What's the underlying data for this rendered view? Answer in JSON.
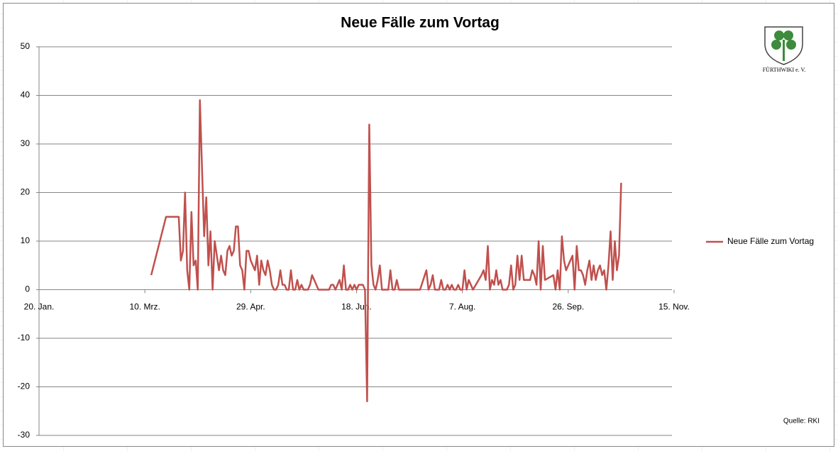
{
  "chart_data": {
    "type": "line",
    "title": "Neue Fälle zum Vortag",
    "x": [
      73,
      80,
      86,
      87,
      88,
      89,
      90,
      91,
      92,
      93,
      94,
      95,
      96,
      97,
      98,
      99,
      100,
      101,
      102,
      103,
      104,
      105,
      106,
      107,
      108,
      109,
      110,
      111,
      112,
      113,
      114,
      115,
      116,
      117,
      118,
      119,
      120,
      121,
      122,
      123,
      124,
      125,
      126,
      127,
      128,
      129,
      130,
      131,
      132,
      133,
      134,
      135,
      136,
      137,
      138,
      139,
      140,
      141,
      142,
      143,
      144,
      145,
      146,
      147,
      148,
      149,
      150,
      151,
      152,
      153,
      154,
      155,
      156,
      157,
      158,
      159,
      160,
      161,
      162,
      163,
      164,
      165,
      166,
      167,
      168,
      169,
      170,
      171,
      172,
      173,
      174,
      175,
      176,
      177,
      178,
      179,
      180,
      181,
      182,
      183,
      184,
      185,
      186,
      187,
      188,
      189,
      190,
      200,
      203,
      204,
      205,
      206,
      207,
      208,
      209,
      210,
      211,
      212,
      213,
      214,
      215,
      216,
      217,
      218,
      219,
      220,
      221,
      222,
      223,
      224,
      225,
      229,
      230,
      231,
      232,
      233,
      234,
      235,
      236,
      237,
      238,
      239,
      240,
      241,
      242,
      243,
      244,
      245,
      246,
      247,
      248,
      249,
      250,
      251,
      252,
      253,
      254,
      255,
      256,
      257,
      258,
      259,
      263,
      264,
      265,
      266,
      267,
      268,
      269,
      270,
      271,
      272,
      273,
      274,
      275,
      276,
      277,
      278,
      279,
      280,
      281,
      282,
      283,
      284,
      285,
      286,
      287,
      288,
      289,
      290,
      291,
      292,
      293,
      294,
      295
    ],
    "series": [
      {
        "name": "Neue Fälle zum Vortag",
        "color": "#c0504d",
        "values": [
          3,
          15,
          15,
          6,
          8,
          20,
          4,
          0,
          16,
          5,
          6,
          0,
          39,
          25,
          11,
          19,
          5,
          12,
          0,
          10,
          7,
          4,
          7,
          4,
          3,
          8,
          9,
          7,
          8,
          13,
          13,
          5,
          4,
          0,
          8,
          8,
          6,
          5,
          4,
          7,
          1,
          6,
          4,
          3,
          6,
          4,
          1,
          0,
          0,
          1,
          4,
          1,
          1,
          0,
          0,
          4,
          0,
          0,
          2,
          0,
          1,
          0,
          0,
          0,
          1,
          3,
          2,
          1,
          0,
          0,
          0,
          0,
          0,
          0,
          1,
          1,
          0,
          1,
          2,
          0,
          5,
          0,
          0,
          1,
          0,
          1,
          0,
          1,
          1,
          1,
          0,
          -23,
          34,
          5,
          1,
          0,
          2,
          5,
          0,
          0,
          0,
          0,
          4,
          0,
          0,
          2,
          0,
          0,
          4,
          0,
          1,
          3,
          0,
          0,
          0,
          2,
          0,
          0,
          1,
          0,
          1,
          0,
          0,
          1,
          0,
          0,
          4,
          0,
          2,
          1,
          0,
          3,
          4,
          2,
          9,
          0,
          2,
          1,
          4,
          1,
          2,
          0,
          0,
          0,
          1,
          5,
          0,
          1,
          7,
          2,
          7,
          2,
          2,
          2,
          2,
          4,
          3,
          1,
          10,
          0,
          9,
          2,
          3,
          0,
          4,
          0,
          11,
          6,
          4,
          5,
          6,
          7,
          0,
          9,
          4,
          4,
          3,
          1,
          4,
          6,
          2,
          5,
          2,
          4,
          5,
          3,
          4,
          0,
          5,
          12,
          2,
          10,
          4,
          7,
          22
        ]
      }
    ],
    "xlim": [
      20,
      319
    ],
    "xticks": [
      {
        "value": 20,
        "label": "20. Jan."
      },
      {
        "value": 70,
        "label": "10. Mrz."
      },
      {
        "value": 120,
        "label": "29. Apr."
      },
      {
        "value": 170,
        "label": "18. Jun."
      },
      {
        "value": 220,
        "label": "7. Aug."
      },
      {
        "value": 270,
        "label": "26. Sep."
      },
      {
        "value": 320,
        "label": "15. Nov."
      }
    ],
    "ylim": [
      -30,
      50
    ],
    "yticks": [
      -30,
      -20,
      -10,
      0,
      10,
      20,
      30,
      40,
      50
    ],
    "grid": true,
    "legend": "right",
    "annotations": [
      "Quelle: RKI"
    ]
  },
  "logo": {
    "text": "FÜRTHWIKI e. V."
  }
}
